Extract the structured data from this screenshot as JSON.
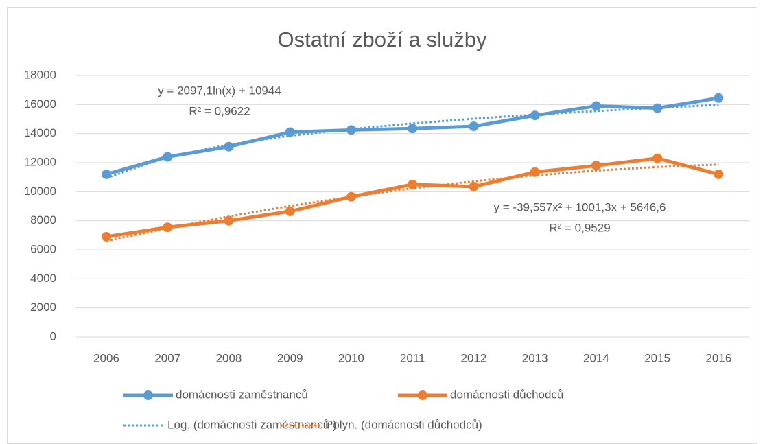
{
  "chart_data": {
    "type": "line",
    "title": "Ostatní zboží a služby",
    "categories": [
      "2006",
      "2007",
      "2008",
      "2009",
      "2010",
      "2011",
      "2012",
      "2013",
      "2014",
      "2015",
      "2016"
    ],
    "series": [
      {
        "name": "domácnosti zaměstnanců",
        "color": "#5b9bd5",
        "dotted": false,
        "markers": true,
        "values": [
          11200,
          12400,
          13100,
          14100,
          14250,
          14350,
          14500,
          15250,
          15900,
          15750,
          16450
        ]
      },
      {
        "name": "domácnosti důchodců",
        "color": "#ed7d31",
        "dotted": false,
        "markers": true,
        "values": [
          6900,
          7550,
          8000,
          8650,
          9650,
          10500,
          10350,
          11350,
          11800,
          12300,
          11200
        ]
      },
      {
        "name": "Log. (domácnosti zaměstnanců )",
        "color": "#5b9bd5",
        "dotted": true,
        "markers": false,
        "values": [
          10944,
          12398,
          13248,
          13851,
          14319,
          14701,
          15025,
          15305,
          15552,
          15773,
          15973
        ]
      },
      {
        "name": "Polyn. (domácnosti důchodců)",
        "color": "#ed7d31",
        "dotted": true,
        "markers": false,
        "values": [
          6608,
          7491,
          8294,
          9018,
          9663,
          10230,
          10717,
          11124,
          11453,
          11703,
          11873
        ]
      }
    ],
    "annotations": [
      {
        "lines": [
          "y = 2097,1ln(x) + 10944",
          "R² = 0,9622"
        ]
      },
      {
        "lines": [
          "y = -39,557x² + 1001,3x + 5646,6",
          "R² = 0,9529"
        ]
      }
    ],
    "ylim": [
      0,
      18000
    ],
    "yticks": [
      0,
      2000,
      4000,
      6000,
      8000,
      10000,
      12000,
      14000,
      16000,
      18000
    ],
    "grid": true,
    "legend": "bottom"
  }
}
